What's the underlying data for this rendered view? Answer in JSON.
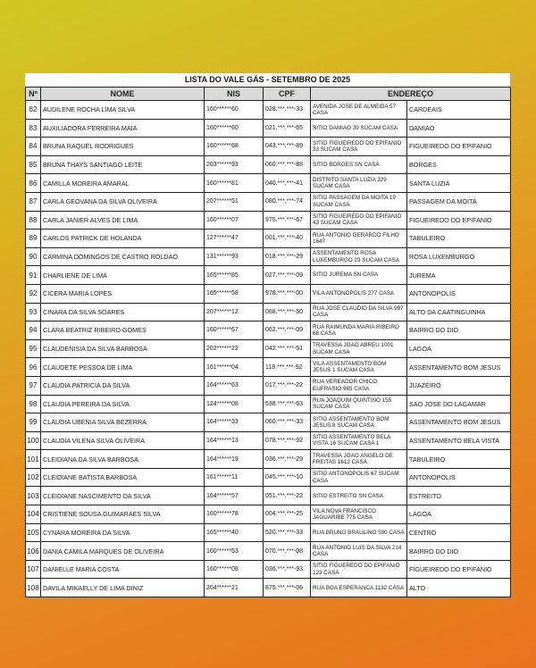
{
  "title": "LISTA DO VALE GÁS - SETEMBRO DE 2025",
  "headers": {
    "num": "Nº",
    "nome": "NOME",
    "nis": "NIS",
    "cpf": "CPF",
    "endereco": "ENDEREÇO"
  },
  "rows": [
    [
      "82",
      "AUDILENE ROCHA LIMA SILVA",
      "160******60",
      "028.***.***-33",
      "AVENIDA JOSE DE ALMEIDA 57 CASA",
      "CARDEAIS"
    ],
    [
      "83",
      "AUXILIADORA FERREIRA MAIA",
      "160******60",
      "021.***.***-65",
      "SITIO DAMIAO 39 SUCAM CASA",
      "DAMIAO"
    ],
    [
      "84",
      "BRUNA RAQUEL RODRIGUES",
      "160******68",
      "043.***.***-89",
      "SITIO FIGUEIREDO DO EPIFANIO 33 SUCAM CASA",
      "FIGUEIREDO DO EPIFANIO"
    ],
    [
      "85",
      "BRUNA THAYS SANTIAGO LEITE",
      "203******93",
      "060.***.***-88",
      "SITIO BORGES SN CASA",
      "BORGES"
    ],
    [
      "86",
      "CAMILLA MOREIRA AMARAL",
      "160******81",
      "040.***.***-41",
      "DISTRITO SANTA LUZIA 329 SUCAM CASA",
      "SANTA LUZIA"
    ],
    [
      "87",
      "CARLA GEOVANA DA SILVA OLIVEIRA",
      "207******51",
      "080.***.***-74",
      "SITIO PASSAGEM DA MOITA 19 SUCAM CASA",
      "PASSAGEM DA MOITA"
    ],
    [
      "88",
      "CARLA JANIER ALVES DE LIMA",
      "160******07",
      "975.***.***-67",
      "SITIO FIGUEIREDO DO EPIFANIO 43 SUCAM CASA",
      "FIGUEIREDO DO EPIFANIO"
    ],
    [
      "89",
      "CARLOS PATRICK DE HOLANDA",
      "127******47",
      "001.***.***-40",
      "RUA ANTONIO GERARDO FILHO 1647",
      "TABULEIRO"
    ],
    [
      "90",
      "CARMINA DOMINGOS DE CASTRO ROLDAO",
      "131******93",
      "018.***.***-29",
      "ASSENTAMENTO ROSA LUXEMBURGO 23 SUCAM CASA",
      "ROSA LUXEMBURGO"
    ],
    [
      "91",
      "CHARLIENE DE LIMA",
      "165******85",
      "027.***.***-09",
      "SITIO JUREMA SN CASA",
      "JUREMA"
    ],
    [
      "92",
      "CICERA MARIA LOPES",
      "165******58",
      "978.***.***-00",
      "VILA ANTONOPOLIS 277 CASA",
      "ANTONOPOLIS"
    ],
    [
      "93",
      "CINARA DA SILVA SOARES",
      "207******12",
      "068.***.***-50",
      "RUA JOSE CLAUDIO DA SILVA 997 CASA",
      "ALTO DA CAATINGUINHA"
    ],
    [
      "94",
      "CLARA BEATRIZ RIBEIRO GOMES",
      "160******67",
      "062.***.***-09",
      "RUA RAIMUNDA MARIA RIBEIRO 68 CASA",
      "BAIRRO DO DIO"
    ],
    [
      "95",
      "CLAUDENISIA DA SILVA BARBOSA",
      "202******22",
      "042.***.***-51",
      "TRAVESSA JOAO ABREU 1001 SUCAM CASA",
      "LAGOA"
    ],
    [
      "96",
      "CLAUDETE PESSOA DE LIMA",
      "161******04",
      "118.***.***-92",
      "VILA ASSENTAMENTO BOM JESUS 1 SUCAM CASA",
      "ASSENTAMENTO BOM JESUS"
    ],
    [
      "97",
      "CLAUDIA PATRICIA DA SILVA",
      "164******63",
      "017.***.***-22",
      "RUA VEREADOR CHICO EUFRASIO 985 CASA",
      "JUAZEIRO"
    ],
    [
      "98",
      "CLAUDIA PEREIRA DA SILVA",
      "124******08",
      "538.***.***-63",
      "RUA JOAQUIM QUINTINO 155 SUCAM CASA",
      "SAO JOSE DO LAGAMAR"
    ],
    [
      "99",
      "CLAUDIA UBENIA SILVA BEZERRA",
      "164******33",
      "060.***.***-33",
      "SITIO ASSENTAMENTO BOM JESUS 8 SUCAM CASA",
      "ASSENTAMENTO BOM JESUS"
    ],
    [
      "100",
      "CLAUDIA VILENA SILVA OLIVEIRA",
      "164******13",
      "078.***.***-92",
      "SITIO ASSENTAMENTO BELA VISTA 16 SUCAM CASA 1",
      "ASSENTAMENTO BELA VISTA"
    ],
    [
      "101",
      "CLEIDIANA DA SILVA BARBOSA",
      "164******19",
      "036.***.***-29",
      "TRAVESSA JOAO ANGELO DE FREITAS 1612 CASA",
      "TABULEIRO"
    ],
    [
      "102",
      "CLEIDIANE BATISTA BARBOSA",
      "161******11",
      "045.***.***-10",
      "SITIO ANTONOPOLIS 67 SUCAM CASA",
      "ANTONOPOLIS"
    ],
    [
      "103",
      "CLEIDIANE NASCIMENTO DA SILVA",
      "164******57",
      "051.***.***-22",
      "SITIO ESTREITO SN CASA",
      "ESTREITO"
    ],
    [
      "104",
      "CRISTIENE SOUSA GUIMARAES SILVA",
      "160******78",
      "004.***.***-25",
      "VILA NOVA FRANCISCO JAGUARIBE 775 CASA",
      "LAGOA"
    ],
    [
      "105",
      "CYNARA MOREIRA DA SILVA",
      "165******40",
      "520.***.***-33",
      "RUA BRUNO BRAULINO 590 CASA",
      "CENTRO"
    ],
    [
      "106",
      "DANIA CAMILA MARQUES DE OLIVEIRA",
      "160******53",
      "070.***.***-08",
      "RUA ANTONIO LUIS DA SILVA 214 CASA",
      "BAIRRO DO DIO"
    ],
    [
      "107",
      "DANIELLE MARIA COSTA",
      "160******08",
      "036.***.***-93",
      "SITIO FIGUEREDO DO EPIFANIO 123 CASA",
      "FIGUEIREDO DO EPIFANIO"
    ],
    [
      "108",
      "DAVILA MIKAELLY DE LIMA DINIZ",
      "204******21",
      "875.***.***-06",
      "RUA BOA ESPERANCA 1132 CASA",
      "ALTO"
    ]
  ],
  "colors": {
    "bg_start": "#cfc922",
    "bg_end": "#e8731f",
    "header_bg": "#d9d9d9"
  }
}
